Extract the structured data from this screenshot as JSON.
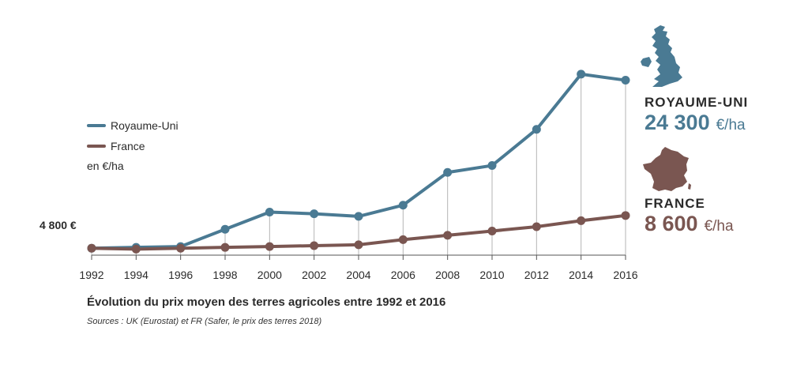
{
  "colors": {
    "uk": "#4a7a93",
    "fr": "#7a5651",
    "grid": "#b5b5b5",
    "axis": "#555555"
  },
  "legend": {
    "uk_label": "Royaume-Uni",
    "fr_label": "France",
    "unit": "en €/ha"
  },
  "baseline_label": "4 800 €",
  "callouts": {
    "uk": {
      "name": "ROYAUME-UNI",
      "value": "24 300",
      "unit": "€/ha",
      "icon": "uk-map-icon"
    },
    "fr": {
      "name": "FRANCE",
      "value": "8 600",
      "unit": "€/ha",
      "icon": "france-map-icon"
    }
  },
  "caption": "Évolution du prix moyen des terres agricoles entre 1992 et 2016",
  "sources": "Sources : UK (Eurostat) et FR (Safer, le prix des terres 2018)",
  "chart_data": {
    "type": "line",
    "x": [
      "1992",
      "1994",
      "1996",
      "1998",
      "2000",
      "2002",
      "2004",
      "2006",
      "2008",
      "2010",
      "2012",
      "2014",
      "2016"
    ],
    "y_range": [
      4000,
      26000
    ],
    "grid": false,
    "series": [
      {
        "name": "Royaume-Uni",
        "values": [
          4800,
          4900,
          5000,
          7000,
          9000,
          8800,
          8500,
          9800,
          13600,
          14400,
          18600,
          25000,
          24300
        ]
      },
      {
        "name": "France",
        "values": [
          4800,
          4700,
          4800,
          4900,
          5000,
          5100,
          5200,
          5800,
          6300,
          6800,
          7300,
          8000,
          8600
        ]
      }
    ]
  }
}
